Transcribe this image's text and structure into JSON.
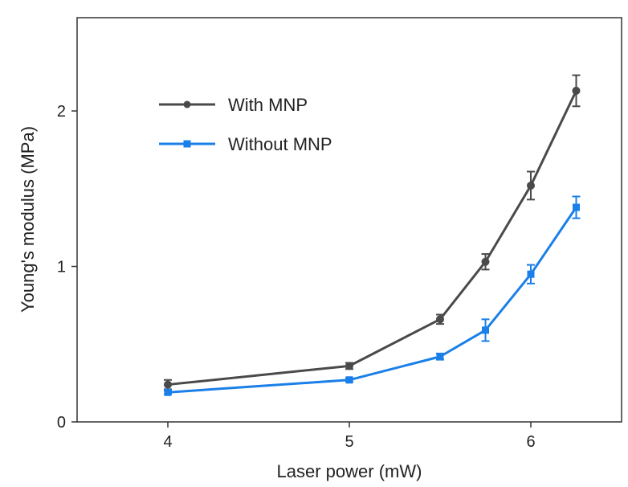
{
  "chart_data": {
    "type": "line",
    "title": "",
    "xlabel": "Laser power (mW)",
    "ylabel": "Young's modulus (MPa)",
    "x_ticks": [
      "4",
      "5",
      "6"
    ],
    "y_ticks": [
      "0",
      "1",
      "2"
    ],
    "xlim": [
      3.5,
      6.5
    ],
    "ylim": [
      0,
      2.6
    ],
    "grid": false,
    "legend_position": "top-left",
    "series": [
      {
        "name": "With MNP",
        "color": "#4a4a4a",
        "marker": "circle",
        "x": [
          4,
          5,
          5.5,
          5.75,
          6,
          6.25
        ],
        "y": [
          0.24,
          0.36,
          0.66,
          1.03,
          1.52,
          2.13
        ],
        "error": [
          0.03,
          0.02,
          0.03,
          0.05,
          0.09,
          0.1
        ]
      },
      {
        "name": "Without MNP",
        "color": "#1a7fe8",
        "marker": "square",
        "x": [
          4,
          5,
          5.5,
          5.75,
          6,
          6.25
        ],
        "y": [
          0.19,
          0.27,
          0.42,
          0.59,
          0.95,
          1.38
        ],
        "error": [
          0.01,
          0.01,
          0.02,
          0.07,
          0.06,
          0.07
        ]
      }
    ]
  }
}
